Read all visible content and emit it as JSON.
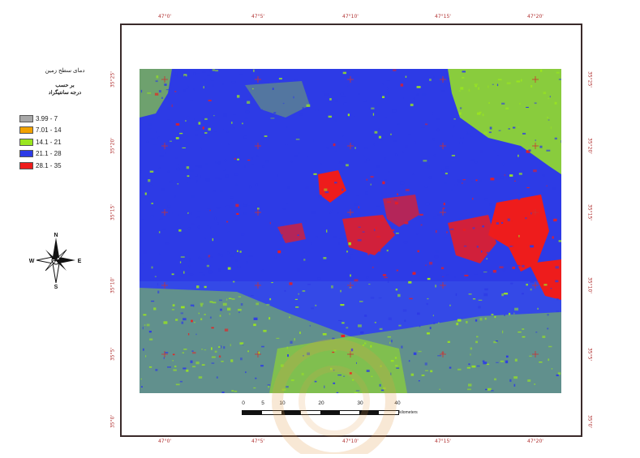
{
  "legend": {
    "title": "دمای سطح زمین",
    "subtitle_line1": "بر حسب",
    "subtitle_line2": "درجه سانتیگراد",
    "items": [
      {
        "label": "3.99 - 7",
        "color": "#a8a8a8"
      },
      {
        "label": "7.01 - 14",
        "color": "#f2a200"
      },
      {
        "label": "14.1 - 21",
        "color": "#9ae61e"
      },
      {
        "label": "21.1 - 28",
        "color": "#2d3be6"
      },
      {
        "label": "28.1 - 35",
        "color": "#ee1c1c"
      }
    ]
  },
  "north_arrow": {
    "n": "N",
    "s": "S",
    "e": "E",
    "w": "W"
  },
  "scale_bar": {
    "ticks": [
      "0",
      "5",
      "10",
      "20",
      "30",
      "40"
    ],
    "unit": "kilometers"
  },
  "graticule": {
    "top": [
      "47°0'",
      "47°5'",
      "47°10'",
      "47°15'",
      "47°20'"
    ],
    "bottom": [
      "47°0'",
      "47°5'",
      "47°10'",
      "47°15'",
      "47°20'"
    ],
    "left": [
      "35°25'",
      "35°20'",
      "35°15'",
      "35°10'",
      "35°5'",
      "35°0'"
    ],
    "right": [
      "35°25'",
      "35°20'",
      "35°15'",
      "35°10'",
      "35°5'",
      "35°0'"
    ]
  },
  "map_colors": {
    "background": "#2d3be6",
    "low": "#9ae61e",
    "high": "#ee1c1c",
    "grid": "#cc3333"
  }
}
